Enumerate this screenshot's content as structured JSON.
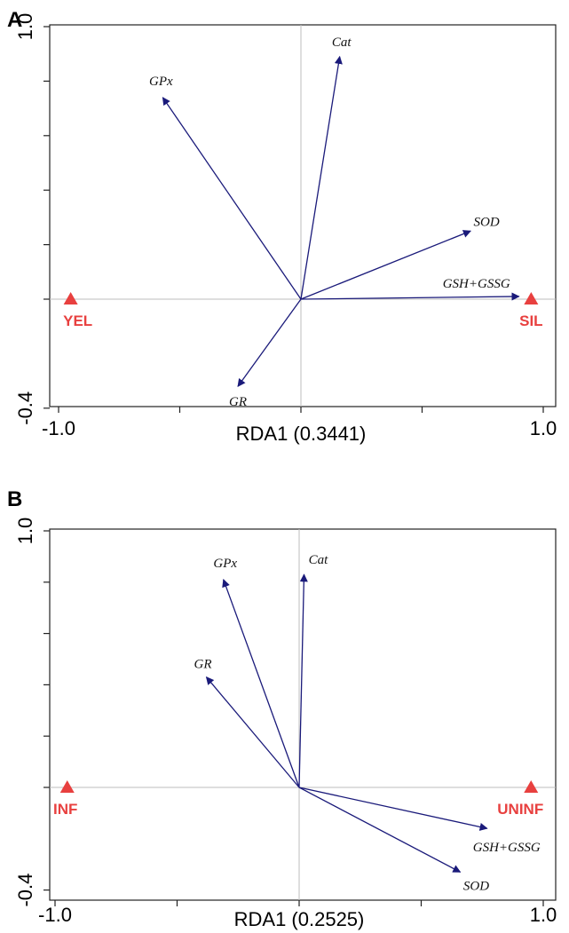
{
  "chart_data": [
    {
      "type": "scatter",
      "subtype": "rda-biplot",
      "panel_label": "A",
      "xlabel": "RDA1 (0.3441)",
      "ylabel": "",
      "xlim": [
        -1.0,
        1.0
      ],
      "ylim": [
        -0.4,
        1.0
      ],
      "x_tick_labels": [
        "-1.0",
        "1.0"
      ],
      "y_tick_labels": [
        "-0.4",
        "1.0"
      ],
      "x_minor_ticks": [
        -1.0,
        -0.5,
        0.0,
        0.5,
        1.0
      ],
      "y_minor_ticks": [
        -0.4,
        0.0,
        0.2,
        0.4,
        0.6,
        0.8,
        1.0
      ],
      "vectors": [
        {
          "name": "Cat",
          "x": 0.16,
          "y": 0.89
        },
        {
          "name": "GPx",
          "x": -0.57,
          "y": 0.74
        },
        {
          "name": "SOD",
          "x": 0.7,
          "y": 0.25
        },
        {
          "name": "GSH+GSSG",
          "x": 0.9,
          "y": 0.01
        },
        {
          "name": "GR",
          "x": -0.26,
          "y": -0.32
        }
      ],
      "sites": [
        {
          "name": "YEL",
          "x": -0.95,
          "y": 0.0
        },
        {
          "name": "SIL",
          "x": 0.95,
          "y": 0.0
        }
      ],
      "vector_color": "#1a1a7a",
      "site_color": "#e8403f",
      "grid": false
    },
    {
      "type": "scatter",
      "subtype": "rda-biplot",
      "panel_label": "B",
      "xlabel": "RDA1 (0.2525)",
      "ylabel": "",
      "xlim": [
        -1.0,
        1.0
      ],
      "ylim": [
        -0.4,
        1.0
      ],
      "x_tick_labels": [
        "-1.0",
        "1.0"
      ],
      "y_tick_labels": [
        "-0.4",
        "1.0"
      ],
      "x_minor_ticks": [
        -1.0,
        -0.5,
        0.0,
        0.5,
        1.0
      ],
      "y_minor_ticks": [
        -0.4,
        0.0,
        0.2,
        0.4,
        0.6,
        0.8,
        1.0
      ],
      "vectors": [
        {
          "name": "Cat",
          "x": 0.02,
          "y": 0.83
        },
        {
          "name": "GPx",
          "x": -0.31,
          "y": 0.81
        },
        {
          "name": "GR",
          "x": -0.38,
          "y": 0.43
        },
        {
          "name": "GSH+GSSG",
          "x": 0.77,
          "y": -0.16
        },
        {
          "name": "SOD",
          "x": 0.66,
          "y": -0.33
        }
      ],
      "sites": [
        {
          "name": "INF",
          "x": -0.95,
          "y": 0.0
        },
        {
          "name": "UNINF",
          "x": 0.95,
          "y": 0.0
        }
      ],
      "vector_color": "#1a1a7a",
      "site_color": "#e8403f",
      "grid": false
    }
  ]
}
